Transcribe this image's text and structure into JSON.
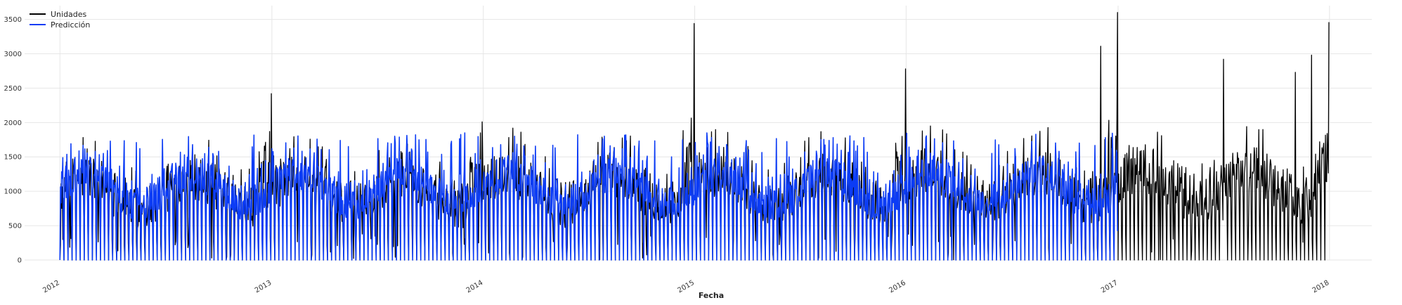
{
  "chart_data": {
    "type": "line",
    "title": "",
    "xlabel": "Fecha",
    "ylabel": "",
    "xlim": [
      "2011-11-01",
      "2018-03-15"
    ],
    "ylim": [
      0,
      3700
    ],
    "x_ticks": [
      "2012",
      "2013",
      "2014",
      "2015",
      "2016",
      "2017",
      "2018"
    ],
    "y_ticks": [
      0,
      500,
      1000,
      1500,
      2000,
      2500,
      3000,
      3500
    ],
    "grid": true,
    "legend": "top-left",
    "colors": {
      "Unidades": "#000000",
      "Predicción": "#0c3cf5",
      "grid": "#e6e6e6"
    },
    "series": [
      {
        "name": "Unidades",
        "frequency": "daily",
        "start": "2012-01-01",
        "end": "2017-12-31",
        "peaks": [
          [
            "2012-12-31",
            2420
          ],
          [
            "2013-12-30",
            2010
          ],
          [
            "2014-12-31",
            3440
          ],
          [
            "2015-12-31",
            2780
          ],
          [
            "2016-12-31",
            3600
          ],
          [
            "2016-12-02",
            3110
          ],
          [
            "2017-12-01",
            2980
          ],
          [
            "2017-12-31",
            3460
          ],
          [
            "2017-07-02",
            2920
          ],
          [
            "2017-11-03",
            2730
          ]
        ]
      },
      {
        "name": "Predicción",
        "frequency": "daily",
        "start": "2012-01-01",
        "end": "2016-12-31",
        "peaks": []
      }
    ]
  },
  "legend": {
    "items": [
      {
        "label": "Unidades",
        "color": "#000000"
      },
      {
        "label": "Predicción",
        "color": "#0c3cf5"
      }
    ]
  }
}
